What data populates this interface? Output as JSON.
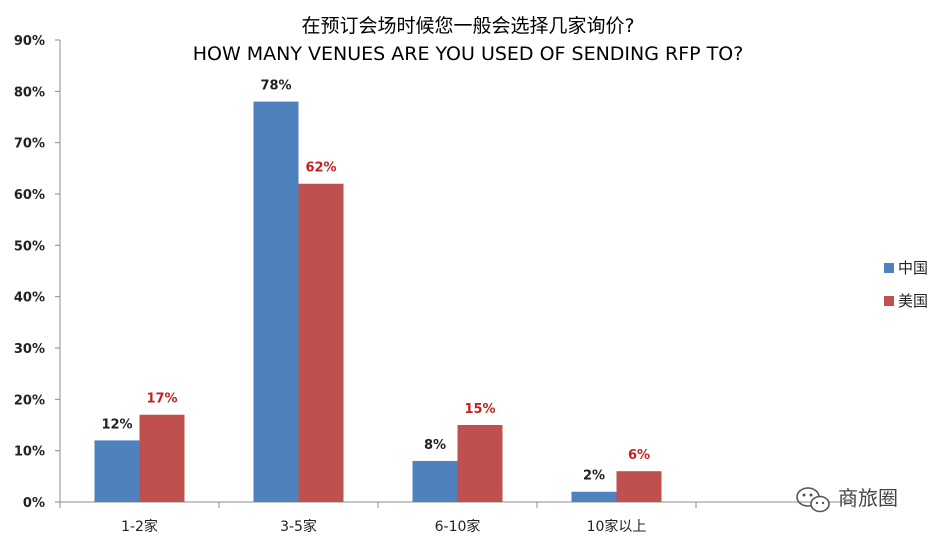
{
  "chart_data": {
    "type": "bar",
    "title": "在预订会场时候您一般会选择几家询价?",
    "subtitle": "HOW MANY VENUES ARE YOU USED OF SENDING RFP TO?",
    "categories": [
      "1-2家",
      "3-5家",
      "6-10家",
      "10家以上"
    ],
    "series": [
      {
        "name": "中国",
        "values": [
          12,
          78,
          8,
          2
        ],
        "color": "#4f81bd",
        "label_color": "#222222"
      },
      {
        "name": "美国",
        "values": [
          17,
          62,
          15,
          6
        ],
        "color": "#c0504d",
        "label_color": "#c0231e"
      }
    ],
    "ylim": [
      0,
      90
    ],
    "yticks": [
      0,
      10,
      20,
      30,
      40,
      50,
      60,
      70,
      80,
      90
    ],
    "ytick_labels": [
      "0%",
      "10%",
      "20%",
      "30%",
      "40%",
      "50%",
      "60%",
      "70%",
      "80%",
      "90%"
    ],
    "value_suffix": "%",
    "grid": false,
    "legend_position": "right",
    "xlabel": "",
    "ylabel": ""
  },
  "watermark": {
    "text": "商旅圈",
    "icon": "wechat-icon"
  }
}
